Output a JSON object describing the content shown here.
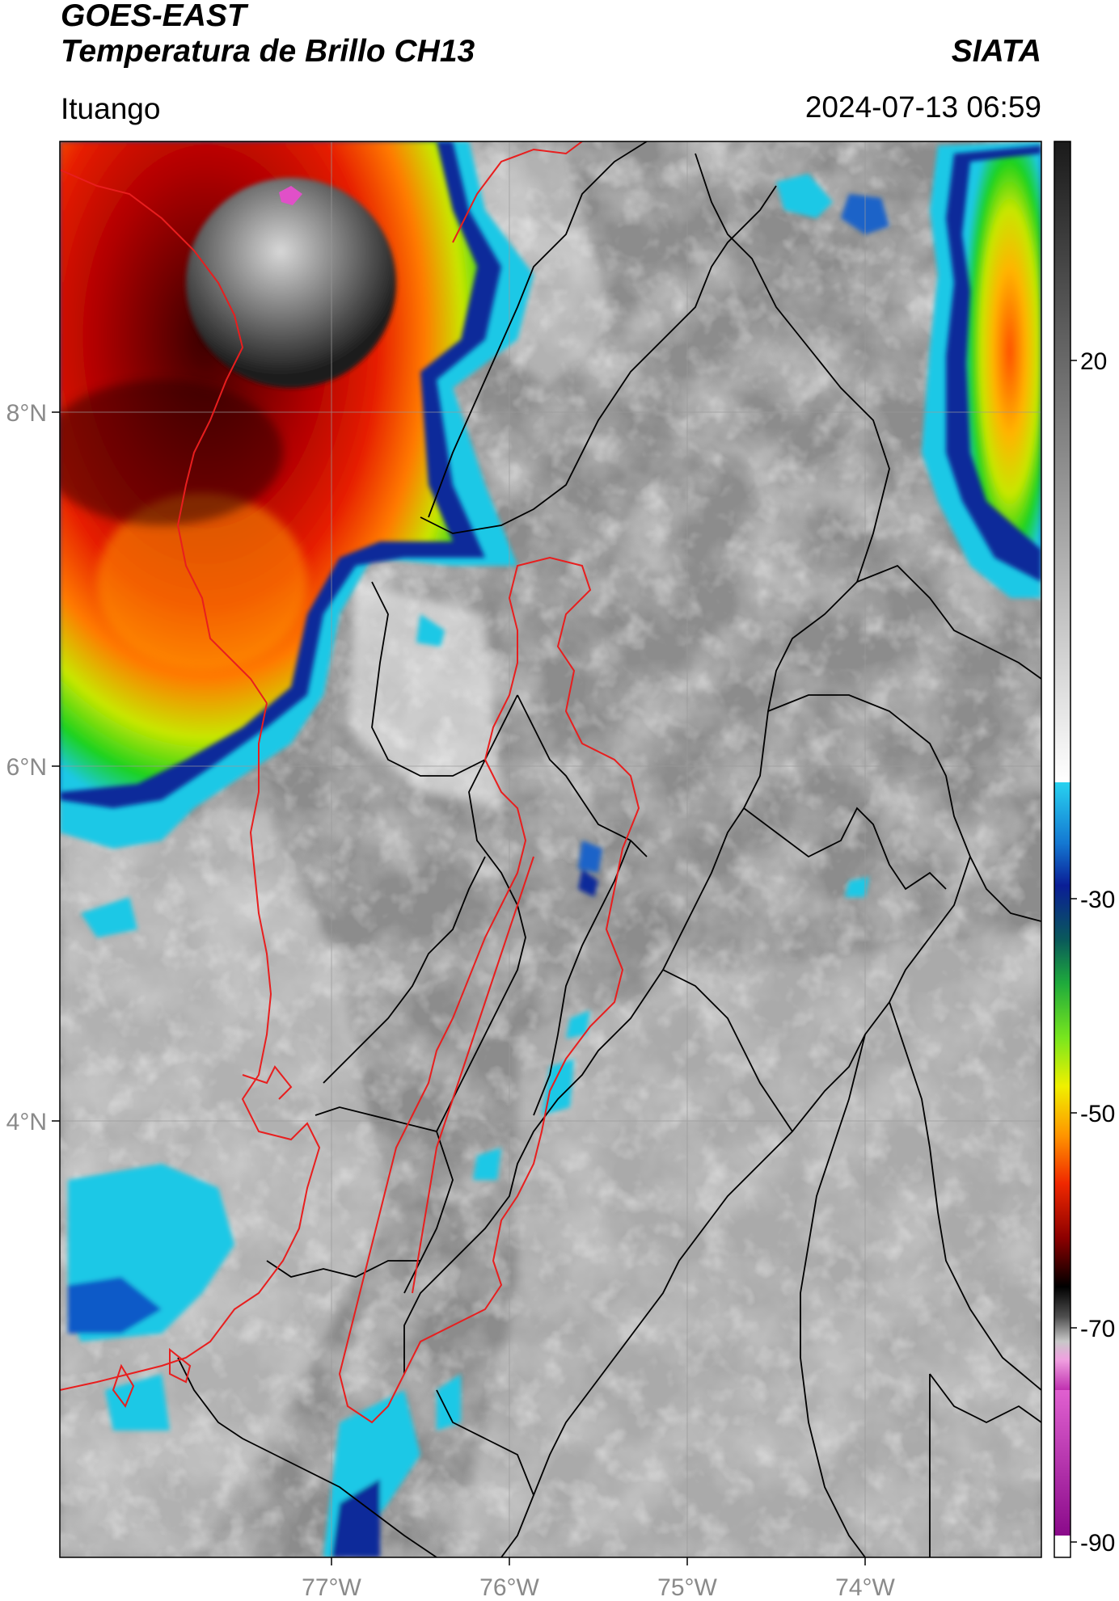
{
  "header": {
    "satellite": "GOES-EAST",
    "product": "Temperatura de Brillo CH13",
    "agency": "SIATA",
    "region": "Ituango",
    "datetime": "2024-07-13 06:59"
  },
  "map": {
    "lon_ticks": [
      "77°W",
      "76°W",
      "75°W",
      "74°W"
    ],
    "lat_ticks": [
      "8°N",
      "6°N",
      "4°N"
    ]
  },
  "colorbar": {
    "tick_labels": [
      "20",
      "-30",
      "-50",
      "-70",
      "-90"
    ],
    "colors": {
      "warm_gray_top": "#202020",
      "warm_gray_bottom": "#ffffff",
      "cyan": "#1ec8e6",
      "blue": "#0a2a9a",
      "green": "#1ed21e",
      "yellow": "#f0f000",
      "orange": "#ff8c00",
      "red": "#e61e00",
      "dark_red": "#3c0000",
      "black": "#000000",
      "gray_band": "#a0a0a0",
      "pink": "#e050c8",
      "purple": "#901090"
    }
  },
  "colors": {
    "country_borders": "#000000",
    "basin_outline": "#e81e1e",
    "graticule": "#9a9a9a"
  }
}
